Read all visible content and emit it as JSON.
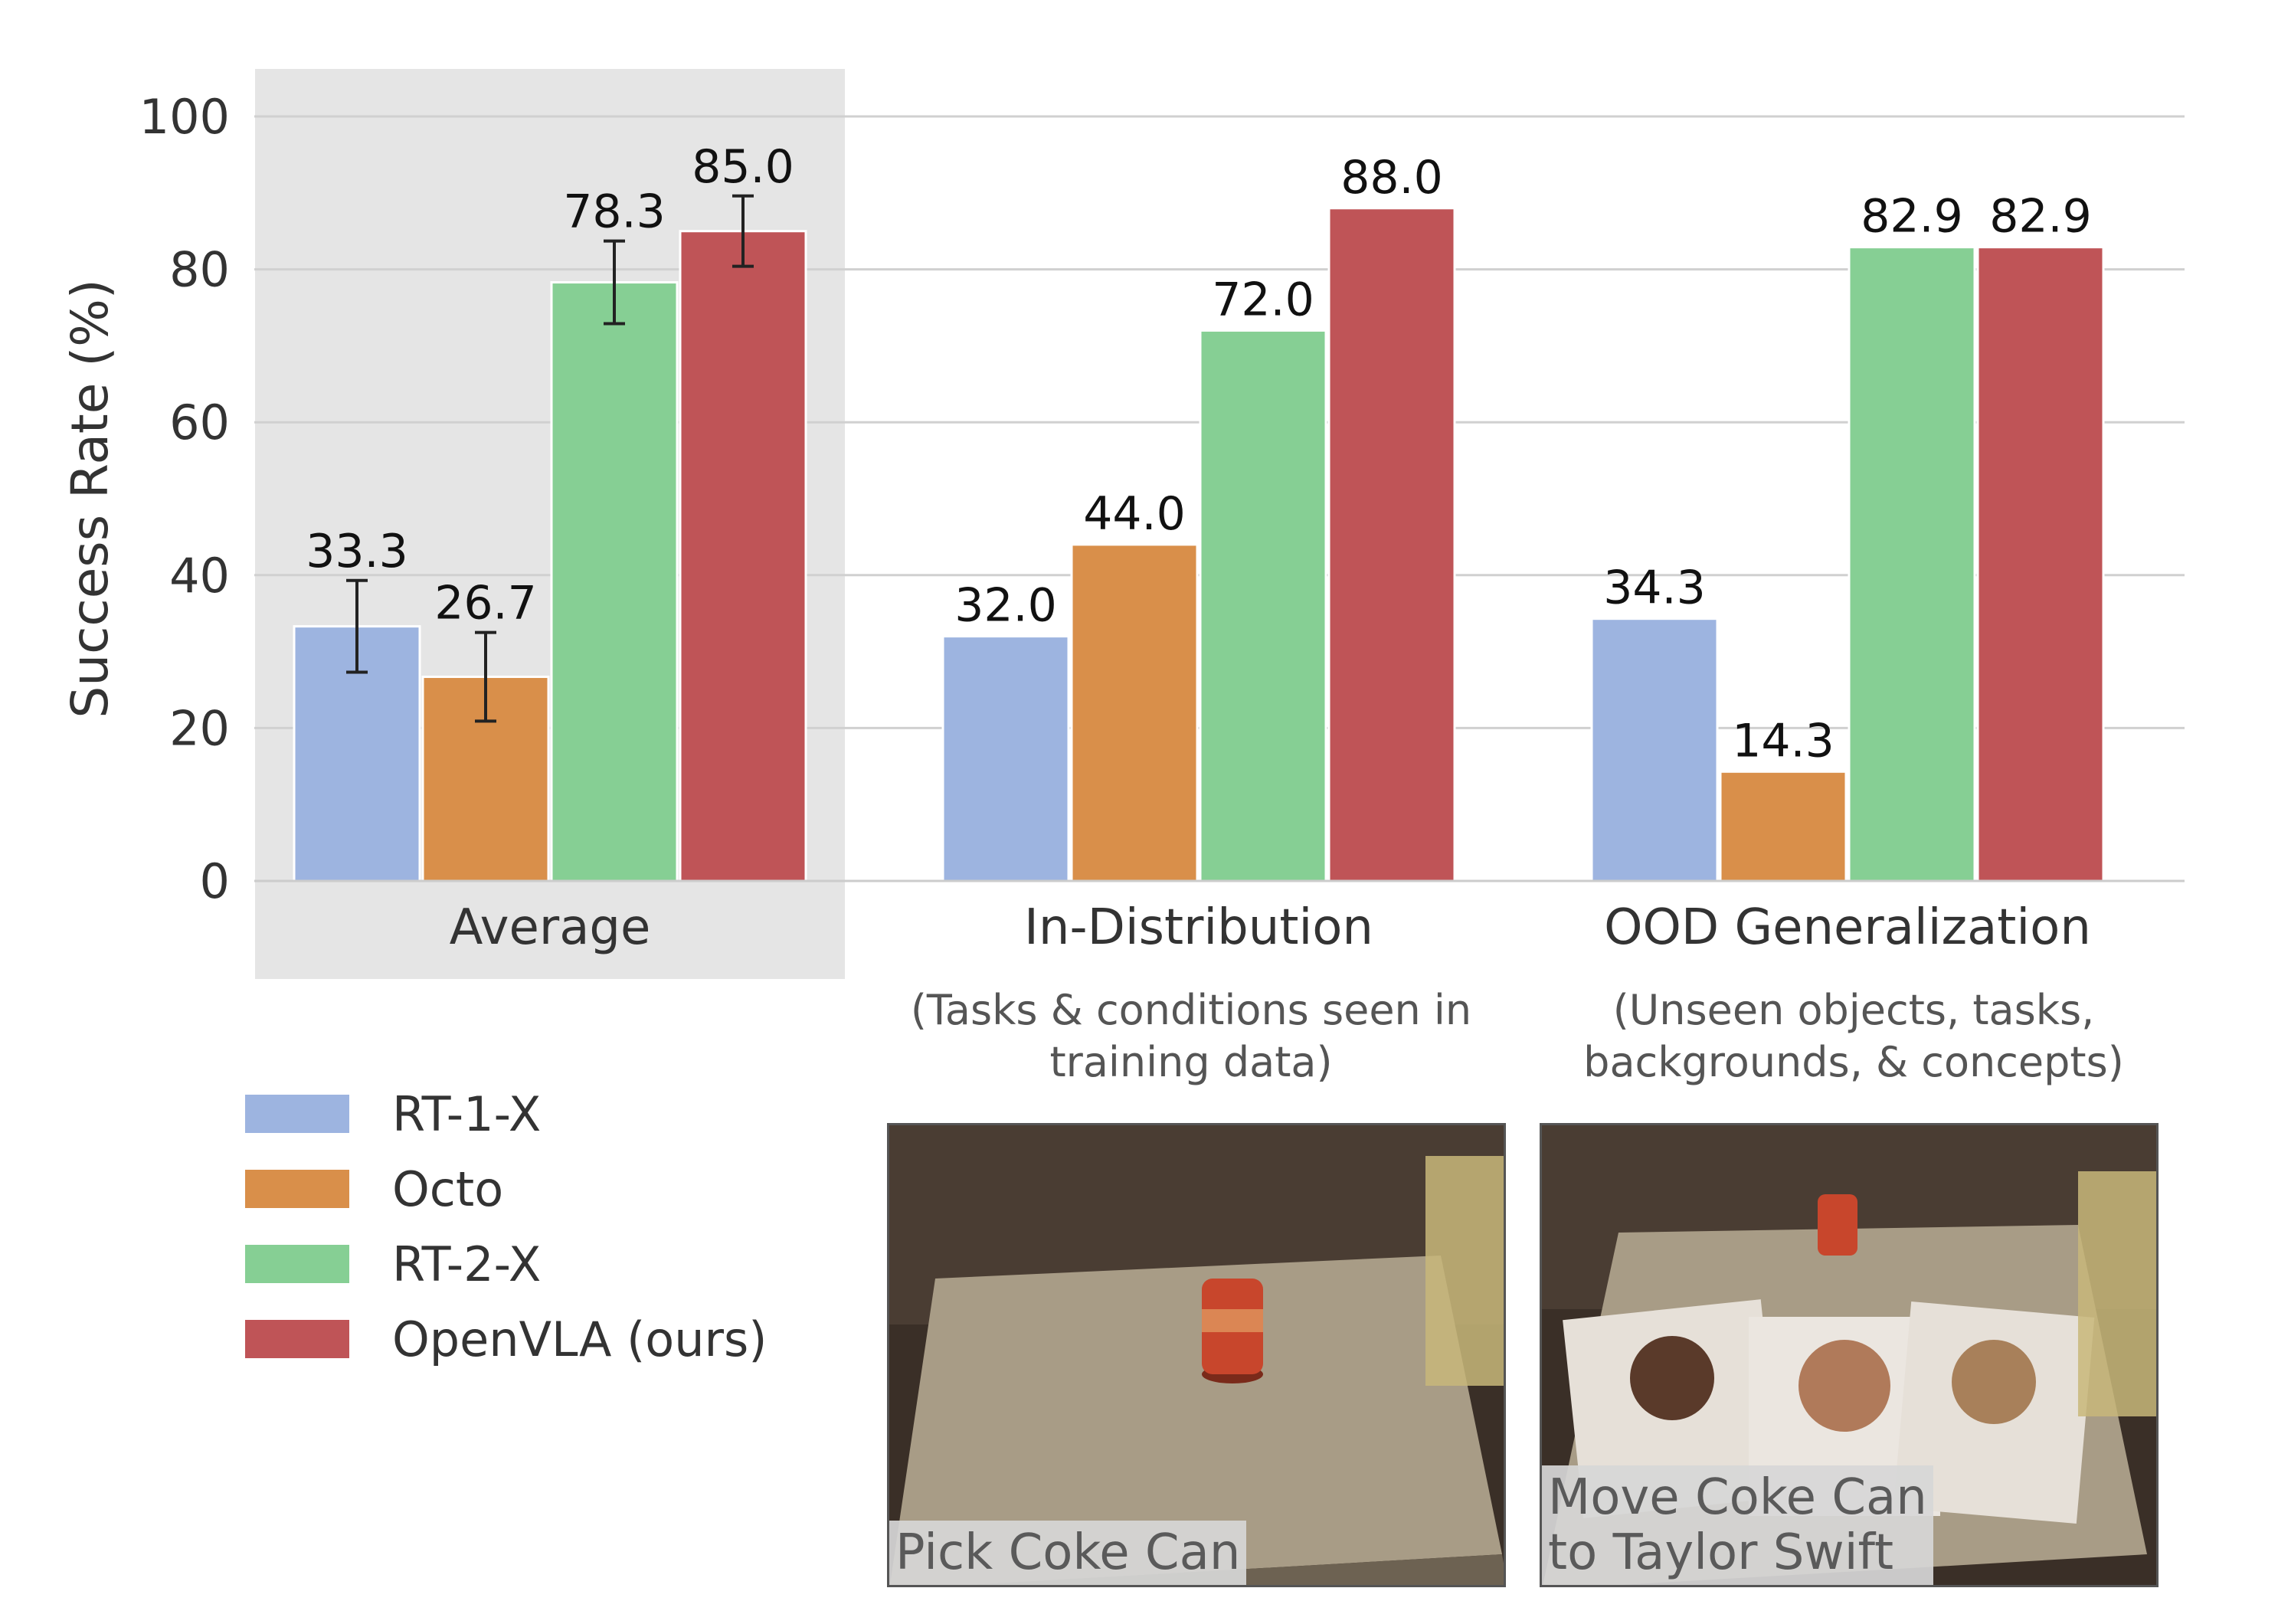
{
  "chart_data": {
    "type": "bar",
    "ylabel": "Success Rate (%)",
    "ylim": [
      0,
      100
    ],
    "yticks": [
      0,
      20,
      40,
      60,
      80,
      100
    ],
    "grid": true,
    "categories": [
      "Average",
      "In-Distribution",
      "OOD Generalization"
    ],
    "category_notes": [
      "",
      "(Tasks & conditions seen in training data)",
      "(Unseen objects, tasks, backgrounds, & concepts)"
    ],
    "highlighted_category": "Average",
    "series": [
      {
        "name": "RT-1-X",
        "color": "#9db4e0",
        "values": [
          33.3,
          32.0,
          34.3
        ],
        "labels": [
          "33.3",
          "32.0",
          "34.3"
        ],
        "error": [
          6.0,
          null,
          null
        ]
      },
      {
        "name": "Octo",
        "color": "#d98f4a",
        "values": [
          26.7,
          44.0,
          14.3
        ],
        "labels": [
          "26.7",
          "44.0",
          "14.3"
        ],
        "error": [
          5.8,
          null,
          null
        ]
      },
      {
        "name": "RT-2-X",
        "color": "#86cf94",
        "values": [
          78.3,
          72.0,
          82.9
        ],
        "labels": [
          "78.3",
          "72.0",
          "82.9"
        ],
        "error": [
          5.4,
          null,
          null
        ]
      },
      {
        "name": "OpenVLA (ours)",
        "color": "#bf5457",
        "values": [
          85.0,
          88.0,
          82.9
        ],
        "labels": [
          "85.0",
          "88.0",
          "82.9"
        ],
        "error": [
          4.6,
          null,
          null
        ]
      }
    ],
    "legend_placement": "bottom-left"
  },
  "notes": {
    "in_distribution": "(Tasks & conditions seen in\ntraining data)",
    "ood": "(Unseen objects, tasks,\nbackgrounds, & concepts)"
  },
  "photos": {
    "pick": {
      "caption": "Pick Coke Can"
    },
    "move": {
      "caption": "Move Coke Can\nto Taylor Swift"
    }
  }
}
